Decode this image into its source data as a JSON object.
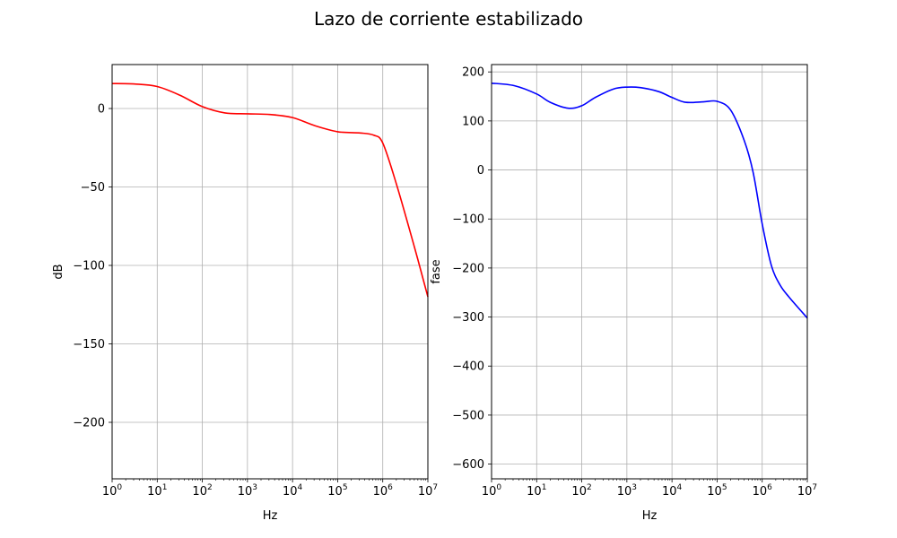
{
  "figure": {
    "title": "Lazo de corriente estabilizado"
  },
  "chart_data": [
    {
      "type": "line",
      "xscale": "log",
      "xlim": [
        1,
        10000000
      ],
      "ylim": [
        -236,
        28
      ],
      "xlabel": "Hz",
      "ylabel": "dB",
      "grid": true,
      "color": "#ff0000",
      "x_ticks": [
        1,
        10,
        100,
        1000,
        10000,
        100000,
        1000000,
        10000000
      ],
      "x_tick_labels": [
        {
          "base": "10",
          "exp": "0"
        },
        {
          "base": "10",
          "exp": "1"
        },
        {
          "base": "10",
          "exp": "2"
        },
        {
          "base": "10",
          "exp": "3"
        },
        {
          "base": "10",
          "exp": "4"
        },
        {
          "base": "10",
          "exp": "5"
        },
        {
          "base": "10",
          "exp": "6"
        },
        {
          "base": "10",
          "exp": "7"
        }
      ],
      "y_ticks": [
        0,
        -50,
        -100,
        -150,
        -200
      ],
      "y_tick_labels": [
        "0",
        "−50",
        "−100",
        "−150",
        "−200"
      ],
      "x": [
        1,
        3.16,
        10,
        31.6,
        100,
        316,
        1000,
        3160,
        10000,
        31600,
        100000,
        316000,
        630000,
        1000000,
        2000000,
        5000000,
        10000000
      ],
      "y": [
        15.9,
        15.6,
        14,
        8.5,
        1.2,
        -2.8,
        -3.4,
        -3.8,
        -5.8,
        -11,
        -14.8,
        -15.6,
        -17,
        -22,
        -48,
        -88,
        -120
      ]
    },
    {
      "type": "line",
      "xscale": "log",
      "xlim": [
        1,
        10000000
      ],
      "ylim": [
        -630,
        215
      ],
      "xlabel": "Hz",
      "ylabel": "fase",
      "grid": true,
      "color": "#0000ff",
      "x_ticks": [
        1,
        10,
        100,
        1000,
        10000,
        100000,
        1000000,
        10000000
      ],
      "x_tick_labels": [
        {
          "base": "10",
          "exp": "0"
        },
        {
          "base": "10",
          "exp": "1"
        },
        {
          "base": "10",
          "exp": "2"
        },
        {
          "base": "10",
          "exp": "3"
        },
        {
          "base": "10",
          "exp": "4"
        },
        {
          "base": "10",
          "exp": "5"
        },
        {
          "base": "10",
          "exp": "6"
        },
        {
          "base": "10",
          "exp": "7"
        }
      ],
      "y_ticks": [
        200,
        100,
        0,
        -100,
        -200,
        -300,
        -400,
        -500,
        -600
      ],
      "y_tick_labels": [
        "200",
        "100",
        "0",
        "−100",
        "−200",
        "−300",
        "−400",
        "−500",
        "−600"
      ],
      "x": [
        1,
        3.16,
        10,
        20,
        50,
        100,
        200,
        500,
        1000,
        2000,
        5000,
        10000,
        20000,
        50000,
        100000,
        200000,
        400000,
        630000,
        1000000,
        1600000,
        2500000,
        4000000,
        10000000
      ],
      "y": [
        177,
        172,
        155,
        138,
        126,
        131,
        148,
        165,
        169,
        168,
        160,
        148,
        138,
        139,
        140,
        122,
        60,
        -5,
        -110,
        -195,
        -235,
        -260,
        -302
      ]
    }
  ]
}
